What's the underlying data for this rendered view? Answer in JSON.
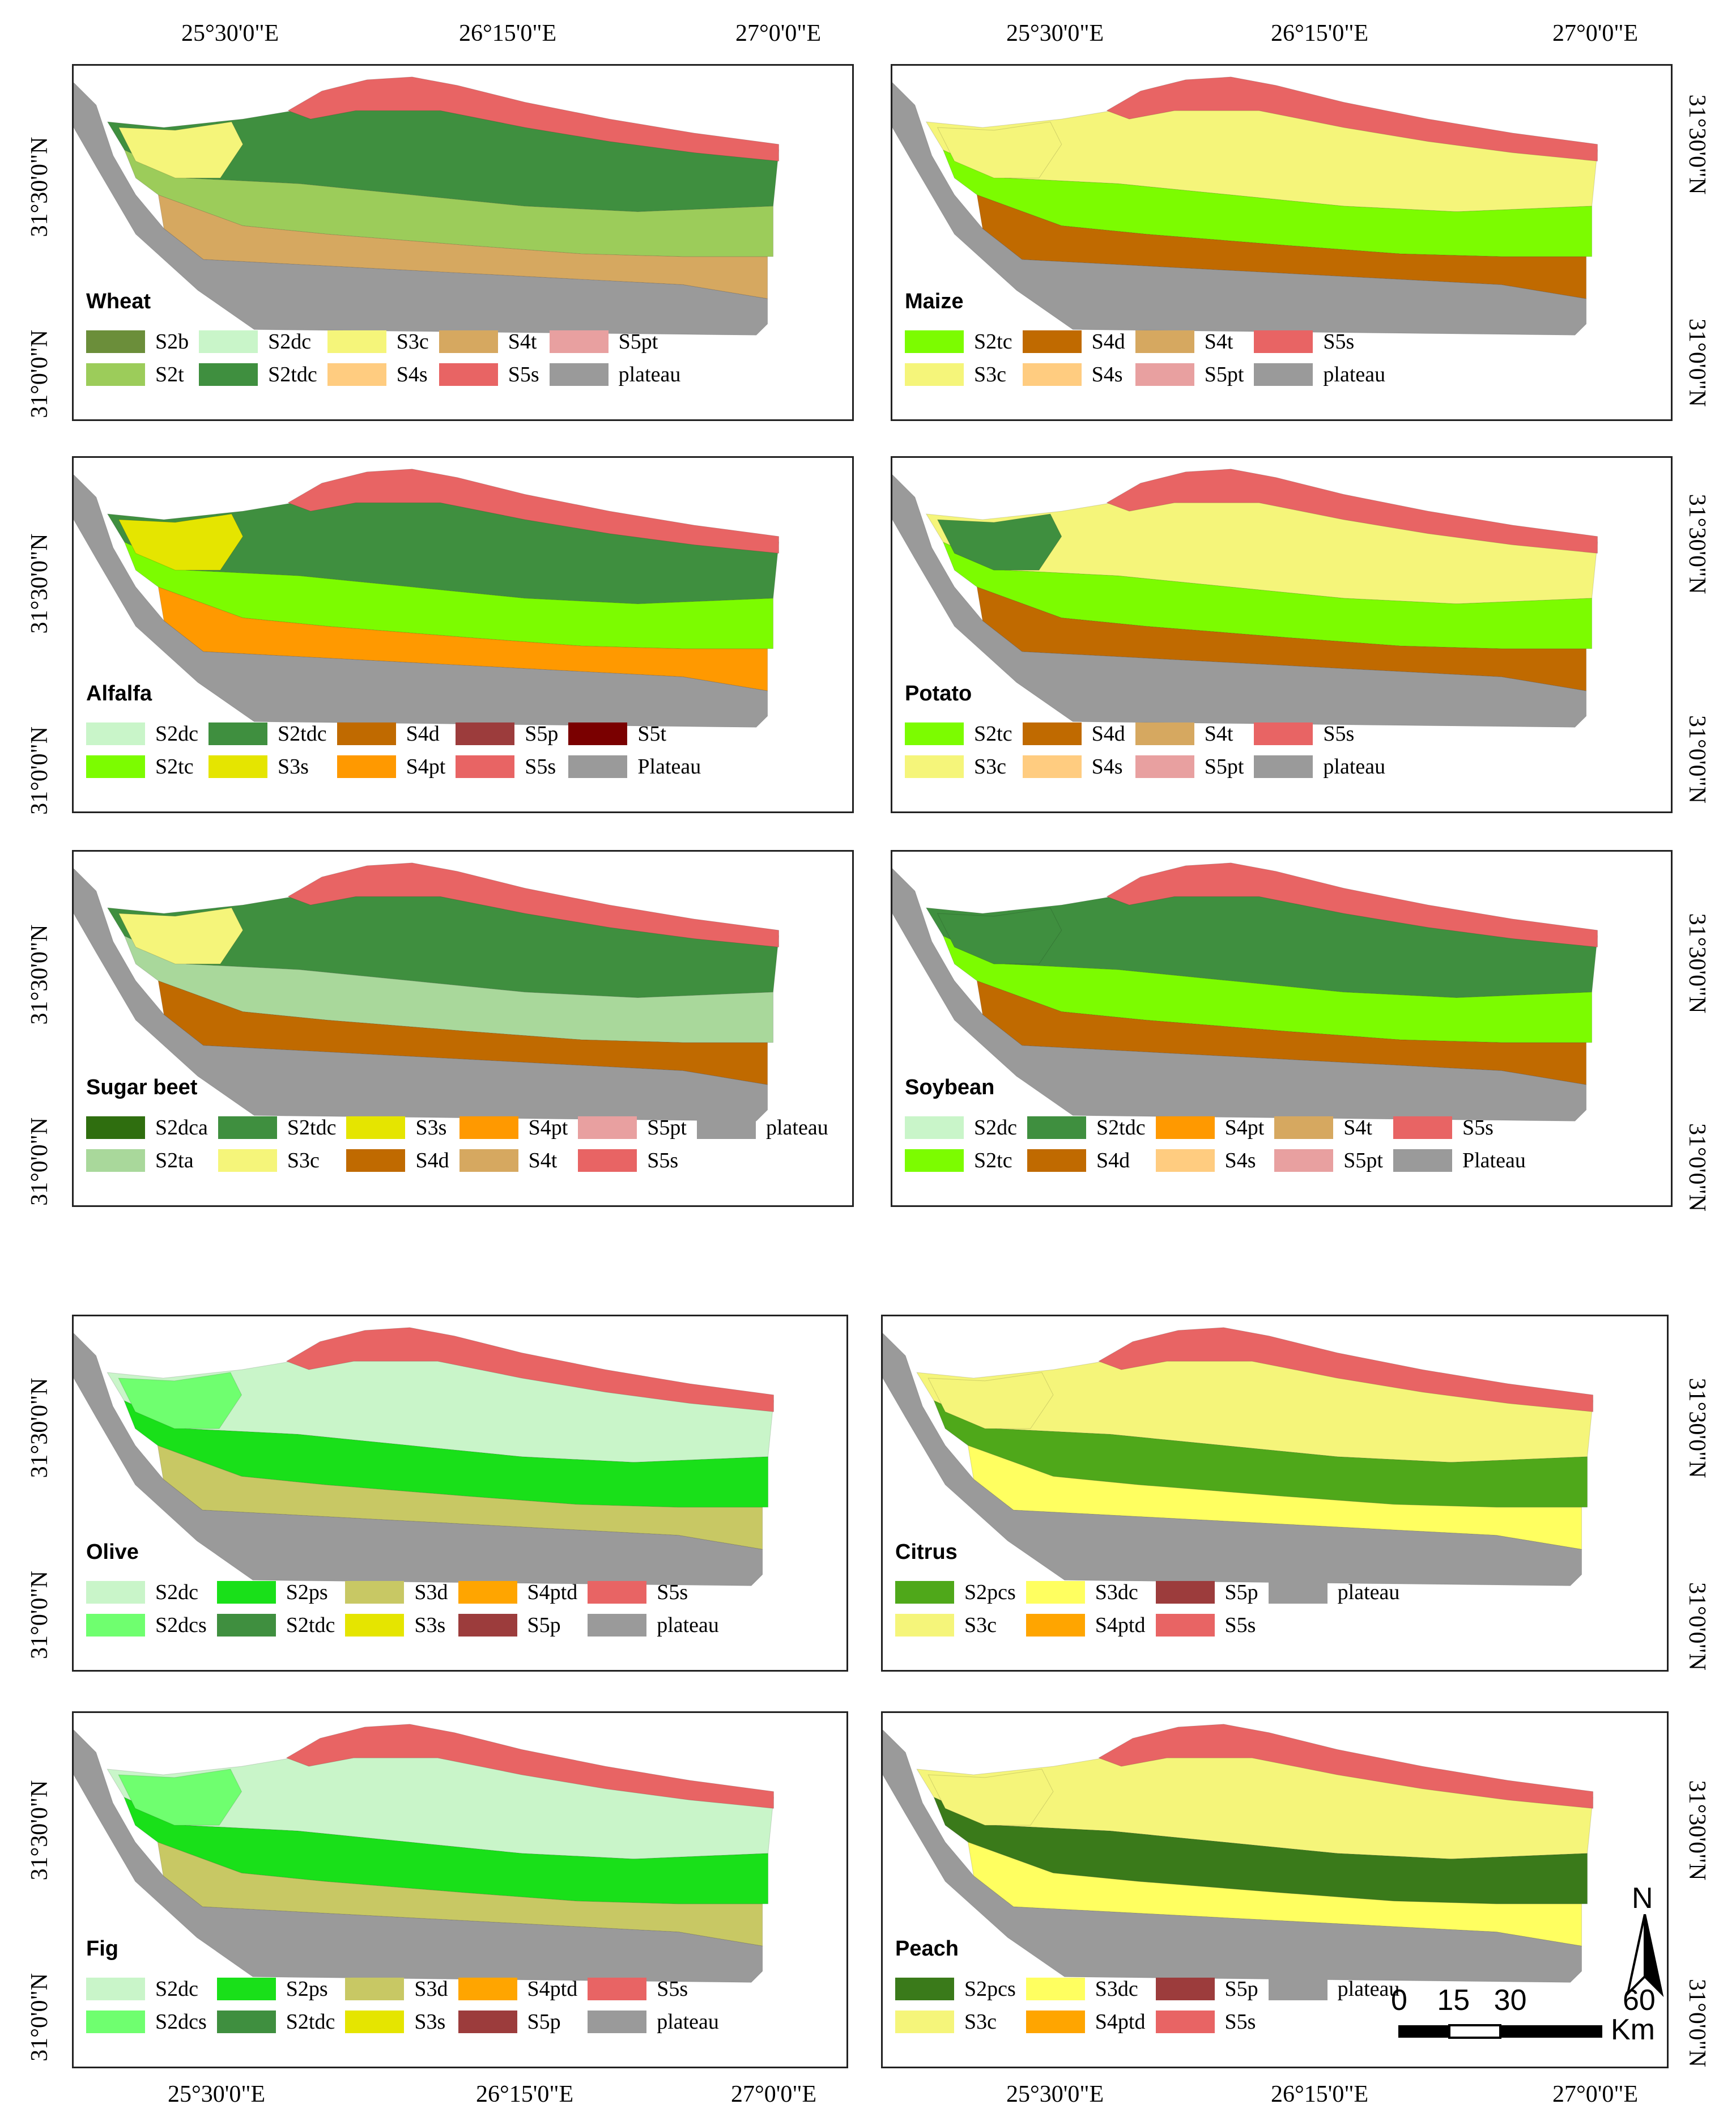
{
  "colors": {
    "S2b": "#6b8e3a",
    "S2t": "#9ccc5a",
    "S2dc": "#c9f5c9",
    "S2tdc": "#3f8f3f",
    "S2tc": "#7cfc00",
    "S2dca": "#2f6e0f",
    "S2ta": "#a9d89b",
    "S2dcs": "#6fff6f",
    "S2ps": "#19e019",
    "S2pcs": "#4fa81a",
    "S3c": "#f5f57a",
    "S3s": "#e5e500",
    "S3d": "#c8c864",
    "S3dc": "#ffff60",
    "S4t": "#d6a860",
    "S4s": "#ffcc80",
    "S4d": "#c06a00",
    "S4pt": "#ff9900",
    "S4ptd": "#ffa500",
    "S5pt": "#e8a0a0",
    "S5s": "#e86464",
    "S5p": "#9c3c3c",
    "S5t": "#7a0000",
    "plateau": "#9a9a9a",
    "S2tdc_dark": "#3a7a1a"
  },
  "axes": {
    "top_lon": [
      "25°30'0\"E",
      "26°15'0\"E",
      "27°0'0\"E"
    ],
    "bottom_lon": [
      "25°30'0\"E",
      "26°15'0\"E",
      "27°0'0\"E"
    ],
    "lat": [
      "31°30'0\"N",
      "31°0'0\"N"
    ]
  },
  "panels": [
    {
      "title": "Wheat",
      "base": "S2tdc",
      "mid": "S2t",
      "south": "S4t",
      "north": "S5s",
      "west": "S3c",
      "legend_cols": 5,
      "legend": [
        {
          "code": "S2b",
          "label": "S2b"
        },
        {
          "code": "S2dc",
          "label": "S2dc"
        },
        {
          "code": "S3c",
          "label": "S3c"
        },
        {
          "code": "S4t",
          "label": "S4t"
        },
        {
          "code": "S5pt",
          "label": "S5pt"
        },
        {
          "code": "S2t",
          "label": "S2t"
        },
        {
          "code": "S2tdc",
          "label": "S2tdc"
        },
        {
          "code": "S4s",
          "label": "S4s"
        },
        {
          "code": "S5s",
          "label": "S5s"
        },
        {
          "code": "plateau",
          "label": "plateau"
        }
      ]
    },
    {
      "title": "Maize",
      "base": "S3c",
      "mid": "S2tc",
      "south": "S4d",
      "north": "S5s",
      "west": "S3c",
      "legend_cols": 4,
      "legend": [
        {
          "code": "S2tc",
          "label": "S2tc"
        },
        {
          "code": "S4d",
          "label": "S4d"
        },
        {
          "code": "S4t",
          "label": "S4t"
        },
        {
          "code": "S5s",
          "label": "S5s"
        },
        {
          "code": "S3c",
          "label": "S3c"
        },
        {
          "code": "S4s",
          "label": "S4s"
        },
        {
          "code": "S5pt",
          "label": "S5pt"
        },
        {
          "code": "plateau",
          "label": "plateau"
        }
      ]
    },
    {
      "title": "Alfalfa",
      "base": "S2tdc",
      "mid": "S2tc",
      "south": "S4pt",
      "north": "S5s",
      "west": "S3s",
      "legend_cols": 5,
      "legend": [
        {
          "code": "S2dc",
          "label": "S2dc"
        },
        {
          "code": "S2tdc",
          "label": "S2tdc"
        },
        {
          "code": "S4d",
          "label": "S4d"
        },
        {
          "code": "S5p",
          "label": "S5p"
        },
        {
          "code": "S5t",
          "label": "S5t"
        },
        {
          "code": "S2tc",
          "label": "S2tc"
        },
        {
          "code": "S3s",
          "label": "S3s"
        },
        {
          "code": "S4pt",
          "label": "S4pt"
        },
        {
          "code": "S5s",
          "label": "S5s"
        },
        {
          "code": "plateau",
          "label": "Plateau"
        }
      ]
    },
    {
      "title": "Potato",
      "base": "S3c",
      "mid": "S2tc",
      "south": "S4d",
      "north": "S5s",
      "west": "S2tdc",
      "legend_cols": 4,
      "legend": [
        {
          "code": "S2tc",
          "label": "S2tc"
        },
        {
          "code": "S4d",
          "label": "S4d"
        },
        {
          "code": "S4t",
          "label": "S4t"
        },
        {
          "code": "S5s",
          "label": "S5s"
        },
        {
          "code": "S3c",
          "label": "S3c"
        },
        {
          "code": "S4s",
          "label": "S4s"
        },
        {
          "code": "S5pt",
          "label": "S5pt"
        },
        {
          "code": "plateau",
          "label": "plateau"
        }
      ]
    },
    {
      "title": "Sugar beet",
      "base": "S2tdc",
      "mid": "S2ta",
      "south": "S4d",
      "north": "S5s",
      "west": "S3c",
      "legend_cols": 6,
      "legend": [
        {
          "code": "S2dca",
          "label": "S2dca"
        },
        {
          "code": "S2tdc",
          "label": "S2tdc"
        },
        {
          "code": "S3s",
          "label": "S3s"
        },
        {
          "code": "S4pt",
          "label": "S4pt"
        },
        {
          "code": "S5pt",
          "label": "S5pt"
        },
        {
          "code": "plateau",
          "label": "plateau"
        },
        {
          "code": "S2ta",
          "label": "S2ta"
        },
        {
          "code": "S3c",
          "label": "S3c"
        },
        {
          "code": "S4d",
          "label": "S4d"
        },
        {
          "code": "S4t",
          "label": "S4t"
        },
        {
          "code": "S5s",
          "label": "S5s"
        }
      ]
    },
    {
      "title": "Soybean",
      "base": "S2tdc",
      "mid": "S2tc",
      "south": "S4d",
      "north": "S5s",
      "west": "S2tdc",
      "legend_cols": 5,
      "legend": [
        {
          "code": "S2dc",
          "label": "S2dc"
        },
        {
          "code": "S2tdc",
          "label": "S2tdc"
        },
        {
          "code": "S4pt",
          "label": "S4pt"
        },
        {
          "code": "S4t",
          "label": "S4t"
        },
        {
          "code": "S5s",
          "label": "S5s"
        },
        {
          "code": "S2tc",
          "label": "S2tc"
        },
        {
          "code": "S4d",
          "label": "S4d"
        },
        {
          "code": "S4s",
          "label": "S4s"
        },
        {
          "code": "S5pt",
          "label": "S5pt"
        },
        {
          "code": "plateau",
          "label": "Plateau"
        }
      ]
    },
    {
      "title": "Olive",
      "base": "S2dc",
      "mid": "S2ps",
      "south": "S3d",
      "north": "S5s",
      "west": "S2dcs",
      "legend_cols": 5,
      "legend": [
        {
          "code": "S2dc",
          "label": "S2dc"
        },
        {
          "code": "S2ps",
          "label": "S2ps"
        },
        {
          "code": "S3d",
          "label": "S3d"
        },
        {
          "code": "S4ptd",
          "label": "S4ptd"
        },
        {
          "code": "S5s",
          "label": "S5s"
        },
        {
          "code": "S2dcs",
          "label": "S2dcs"
        },
        {
          "code": "S2tdc",
          "label": "S2tdc"
        },
        {
          "code": "S3s",
          "label": "S3s"
        },
        {
          "code": "S5p",
          "label": "S5p"
        },
        {
          "code": "plateau",
          "label": "plateau"
        }
      ]
    },
    {
      "title": "Citrus",
      "base": "S3c",
      "mid": "S2pcs",
      "south": "S3dc",
      "north": "S5s",
      "west": "S3c",
      "legend_cols": 4,
      "legend": [
        {
          "code": "S2pcs",
          "label": "S2pcs"
        },
        {
          "code": "S3dc",
          "label": "S3dc"
        },
        {
          "code": "S5p",
          "label": "S5p"
        },
        {
          "code": "plateau",
          "label": "plateau"
        },
        {
          "code": "S3c",
          "label": "S3c"
        },
        {
          "code": "S4ptd",
          "label": "S4ptd"
        },
        {
          "code": "S5s",
          "label": "S5s"
        }
      ]
    },
    {
      "title": "Fig",
      "base": "S2dc",
      "mid": "S2ps",
      "south": "S3d",
      "north": "S5s",
      "west": "S2dcs",
      "legend_cols": 5,
      "legend": [
        {
          "code": "S2dc",
          "label": "S2dc"
        },
        {
          "code": "S2ps",
          "label": "S2ps"
        },
        {
          "code": "S3d",
          "label": "S3d"
        },
        {
          "code": "S4ptd",
          "label": "S4ptd"
        },
        {
          "code": "S5s",
          "label": "S5s"
        },
        {
          "code": "S2dcs",
          "label": "S2dcs"
        },
        {
          "code": "S2tdc",
          "label": "S2tdc"
        },
        {
          "code": "S3s",
          "label": "S3s"
        },
        {
          "code": "S5p",
          "label": "S5p"
        },
        {
          "code": "plateau",
          "label": "plateau"
        }
      ]
    },
    {
      "title": "Peach",
      "base": "S3c",
      "mid": "S2tdc_dark",
      "south": "S3dc",
      "north": "S5s",
      "west": "S3c",
      "legend_cols": 4,
      "legend": [
        {
          "code": "S2tdc_dark",
          "label": "S2pcs"
        },
        {
          "code": "S3dc",
          "label": "S3dc"
        },
        {
          "code": "S5p",
          "label": "S5p"
        },
        {
          "code": "plateau",
          "label": "plateau"
        },
        {
          "code": "S3c",
          "label": "S3c"
        },
        {
          "code": "S4ptd",
          "label": "S4ptd"
        },
        {
          "code": "S5s",
          "label": "S5s"
        }
      ]
    }
  ],
  "scalebar": {
    "labels": [
      "0",
      "15",
      "30",
      "60"
    ],
    "unit": "Km"
  },
  "north_arrow": {
    "label": "N"
  }
}
